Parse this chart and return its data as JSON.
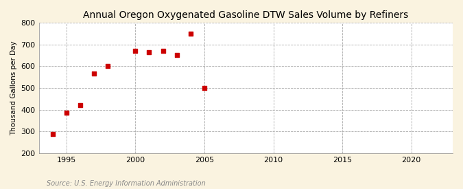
{
  "title": "Annual Oregon Oxygenated Gasoline DTW Sales Volume by Refiners",
  "ylabel": "Thousand Gallons per Day",
  "source": "Source: U.S. Energy Information Administration",
  "years": [
    1994,
    1995,
    1996,
    1997,
    1998,
    2000,
    2001,
    2002,
    2003,
    2004,
    2005
  ],
  "values": [
    290,
    385,
    420,
    565,
    600,
    670,
    665,
    670,
    650,
    750,
    500
  ],
  "xlim": [
    1993,
    2023
  ],
  "ylim": [
    200,
    800
  ],
  "xticks": [
    1995,
    2000,
    2005,
    2010,
    2015,
    2020
  ],
  "yticks": [
    200,
    300,
    400,
    500,
    600,
    700,
    800
  ],
  "marker_color": "#cc0000",
  "marker": "s",
  "marker_size": 4,
  "figure_bg_color": "#faf3e0",
  "plot_bg_color": "#ffffff",
  "grid_color": "#aaaaaa",
  "title_fontsize": 10,
  "label_fontsize": 7.5,
  "tick_fontsize": 8,
  "source_fontsize": 7,
  "source_color": "#888888"
}
